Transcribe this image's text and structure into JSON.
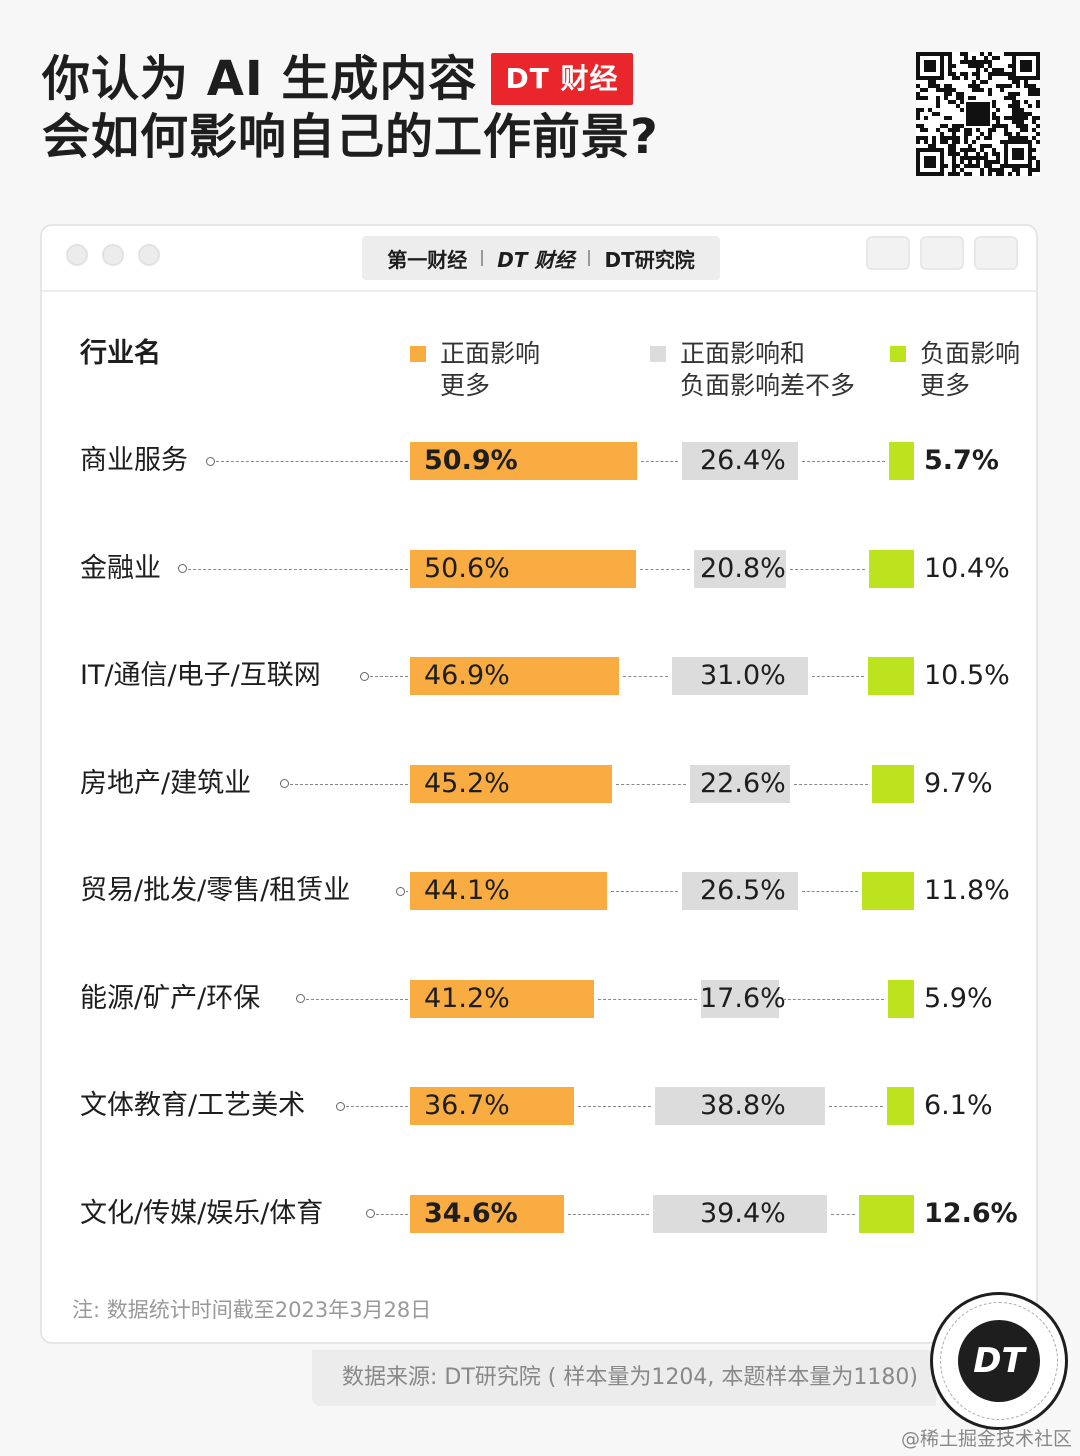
{
  "title": {
    "line1": "你认为 AI 生成内容",
    "line2": "会如何影响自己的工作前景?",
    "brand": "DT 财经"
  },
  "logobar": {
    "logo1": "第一财经",
    "logo2": "DT 财经",
    "logo3": "DT研究院"
  },
  "chart_data": {
    "type": "bar",
    "header": "行业名",
    "categories": [
      "商业服务",
      "金融业",
      "IT/通信/电子/互联网",
      "房地产/建筑业",
      "贸易/批发/零售/租赁业",
      "能源/矿产/环保",
      "文体教育/工艺美术",
      "文化/传媒/娱乐/体育"
    ],
    "series": [
      {
        "name": "正面影响更多",
        "legend_lines": [
          "正面影响",
          "更多"
        ],
        "color": "#f9ac41",
        "values": [
          50.9,
          50.6,
          46.9,
          45.2,
          44.1,
          41.2,
          36.7,
          34.6
        ]
      },
      {
        "name": "正面影响和负面影响差不多",
        "legend_lines": [
          "正面影响和",
          "负面影响差不多"
        ],
        "color": "#dcdcdc",
        "values": [
          26.4,
          20.8,
          31.0,
          22.6,
          26.5,
          17.6,
          38.8,
          39.4
        ]
      },
      {
        "name": "负面影响更多",
        "legend_lines": [
          "负面影响",
          "更多"
        ],
        "color": "#bde31f",
        "values": [
          5.7,
          10.4,
          10.5,
          9.7,
          11.8,
          5.9,
          6.1,
          12.6
        ]
      }
    ],
    "bold_rows": [
      0,
      7
    ],
    "unit": "%"
  },
  "note": "注: 数据统计时间截至2023年3月28日",
  "source": "数据来源: DT研究院 ( 样本量为1204, 本题样本量为1180)",
  "badge": "DT",
  "credit": "@稀土掘金技术社区"
}
